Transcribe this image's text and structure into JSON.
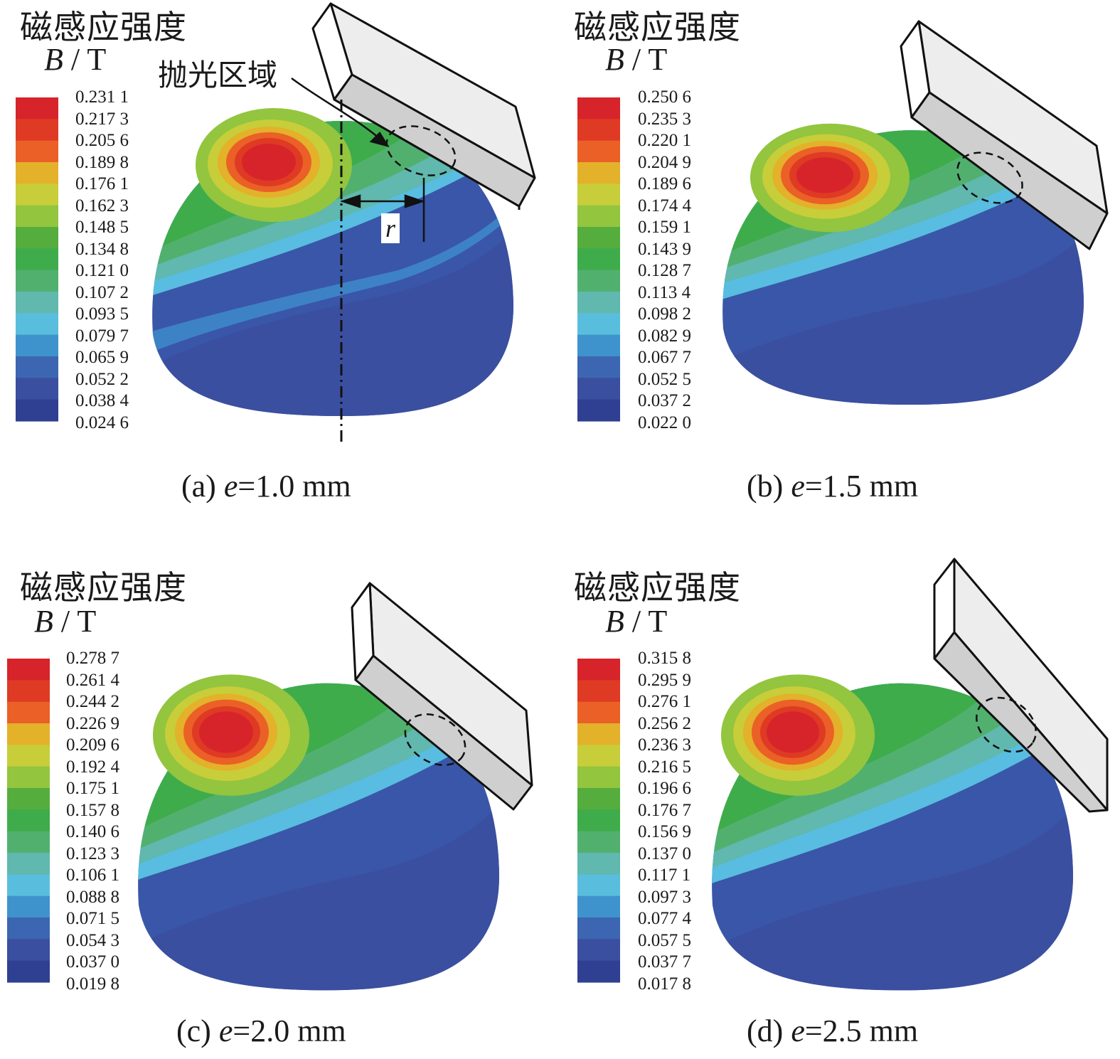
{
  "legend_title": "磁感应强度",
  "legend_unit_symbol": "B",
  "legend_unit_sep": "/",
  "legend_unit": "T",
  "callout_label": "抛光区域",
  "radius_label": "r",
  "colormap": [
    "#d7242a",
    "#df3a24",
    "#ea6027",
    "#e3b12a",
    "#c8cd3a",
    "#93c53f",
    "#55ad3e",
    "#3fac4c",
    "#52b06f",
    "#60b8ae",
    "#59bedd",
    "#3e93cd",
    "#3c66b1",
    "#3a4f9f",
    "#2f3f92"
  ],
  "panels": [
    {
      "caption_prefix": "(a) ",
      "caption_var": "e",
      "caption_value": "=1.0 mm",
      "ticks": [
        "0.231 1",
        "0.217 3",
        "0.205 6",
        "0.189 8",
        "0.176 1",
        "0.162 3",
        "0.148 5",
        "0.134 8",
        "0.121 0",
        "0.107 2",
        "0.093 5",
        "0.079 7",
        "0.065 9",
        "0.052 2",
        "0.038 4",
        "0.024 6"
      ]
    },
    {
      "caption_prefix": "(b) ",
      "caption_var": "e",
      "caption_value": "=1.5 mm",
      "ticks": [
        "0.250 6",
        "0.235 3",
        "0.220 1",
        "0.204 9",
        "0.189 6",
        "0.174 4",
        "0.159 1",
        "0.143 9",
        "0.128 7",
        "0.113 4",
        "0.098 2",
        "0.082 9",
        "0.067 7",
        "0.052 5",
        "0.037 2",
        "0.022 0"
      ]
    },
    {
      "caption_prefix": "(c) ",
      "caption_var": "e",
      "caption_value": "=2.0 mm",
      "ticks": [
        "0.278 7",
        "0.261 4",
        "0.244 2",
        "0.226 9",
        "0.209 6",
        "0.192 4",
        "0.175 1",
        "0.157 8",
        "0.140 6",
        "0.123 3",
        "0.106 1",
        "0.088 8",
        "0.071 5",
        "0.054 3",
        "0.037 0",
        "0.019 8"
      ]
    },
    {
      "caption_prefix": "(d) ",
      "caption_var": "e",
      "caption_value": "=2.5 mm",
      "ticks": [
        "0.315 8",
        "0.295 9",
        "0.276 1",
        "0.256 2",
        "0.236 3",
        "0.216 5",
        "0.196 6",
        "0.176 7",
        "0.156 9",
        "0.137 0",
        "0.117 1",
        "0.097 3",
        "0.077 4",
        "0.057 5",
        "0.037 7",
        "0.017 8"
      ]
    }
  ]
}
